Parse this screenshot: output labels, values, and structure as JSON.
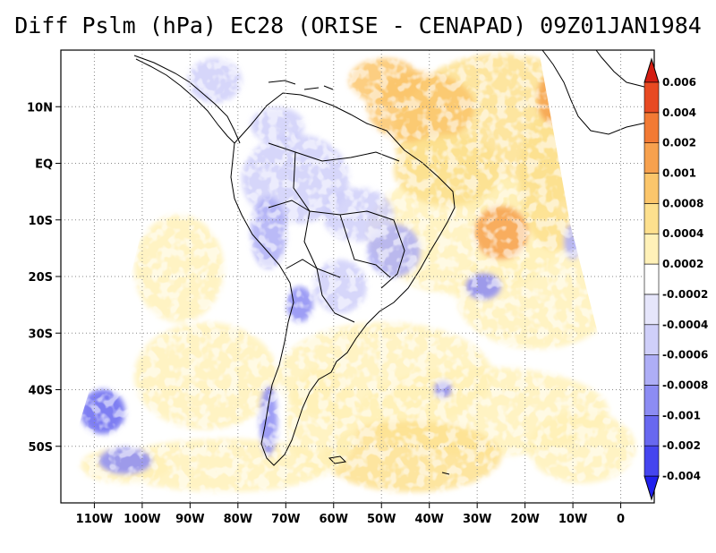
{
  "title": "Diff Pslm (hPa) EC28 (ORISE - CENAPAD) 09Z01JAN1984",
  "chart_data": {
    "type": "heatmap",
    "title": "Diff Pslm (hPa) EC28 (ORISE - CENAPAD) 09Z01JAN1984",
    "lon_range": [
      -117,
      7
    ],
    "lat_range": [
      -60,
      20
    ],
    "x_ticks": [
      {
        "lon": -110,
        "label": "110W"
      },
      {
        "lon": -100,
        "label": "100W"
      },
      {
        "lon": -90,
        "label": "90W"
      },
      {
        "lon": -80,
        "label": "80W"
      },
      {
        "lon": -70,
        "label": "70W"
      },
      {
        "lon": -60,
        "label": "60W"
      },
      {
        "lon": -50,
        "label": "50W"
      },
      {
        "lon": -40,
        "label": "40W"
      },
      {
        "lon": -30,
        "label": "30W"
      },
      {
        "lon": -20,
        "label": "20W"
      },
      {
        "lon": -10,
        "label": "10W"
      },
      {
        "lon": 0,
        "label": "0"
      }
    ],
    "y_ticks": [
      {
        "lat": 10,
        "label": "10N"
      },
      {
        "lat": 0,
        "label": "EQ"
      },
      {
        "lat": -10,
        "label": "10S"
      },
      {
        "lat": -20,
        "label": "20S"
      },
      {
        "lat": -30,
        "label": "30S"
      },
      {
        "lat": -40,
        "label": "40S"
      },
      {
        "lat": -50,
        "label": "50S"
      }
    ],
    "grid": true,
    "colorbar": {
      "placement": "right",
      "colors": [
        "#2020ee",
        "#4545ef",
        "#6868f0",
        "#8c8cf3",
        "#aeaef6",
        "#cfcff9",
        "#e6e6fb",
        "#ffffff",
        "#fff1b8",
        "#fde08e",
        "#fbc66b",
        "#f7a14e",
        "#f27a34",
        "#e84a22",
        "#d41d12"
      ],
      "labels": [
        "-0.004",
        "-0.002",
        "-0.001",
        "-0.0008",
        "-0.0006",
        "-0.0004",
        "-0.0002",
        "0.0002",
        "0.0004",
        "0.0008",
        "0.001",
        "0.002",
        "0.004",
        "0.006"
      ]
    }
  }
}
